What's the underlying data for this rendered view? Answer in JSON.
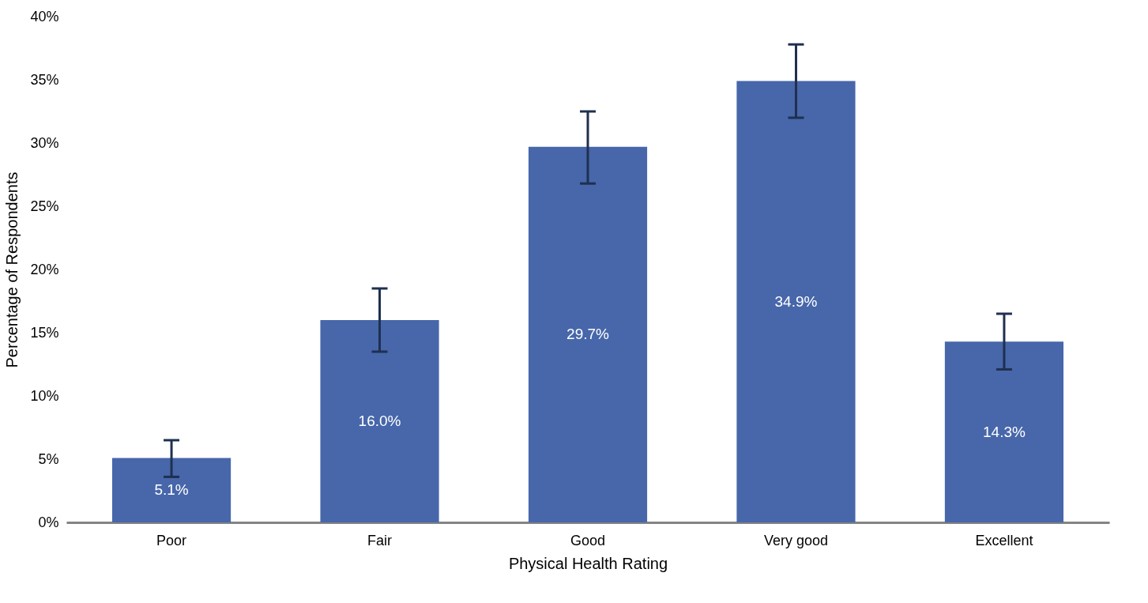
{
  "chart_data": {
    "type": "bar",
    "xlabel": "Physical Health Rating",
    "ylabel": "Percentage of Respondents",
    "categories": [
      "Poor",
      "Fair",
      "Good",
      "Very good",
      "Excellent"
    ],
    "values": [
      5.1,
      16.0,
      29.7,
      34.9,
      14.3
    ],
    "value_labels": [
      "5.1%",
      "16.0%",
      "29.7%",
      "34.9%",
      "14.3%"
    ],
    "errors": [
      [
        3.6,
        6.5
      ],
      [
        13.5,
        18.5
      ],
      [
        26.8,
        32.5
      ],
      [
        32.0,
        37.8
      ],
      [
        12.1,
        16.5
      ]
    ],
    "color": "#4767aa",
    "ylim": [
      0,
      40
    ],
    "yticks": [
      {
        "value": 0,
        "label": "0%"
      },
      {
        "value": 5,
        "label": "5%"
      },
      {
        "value": 10,
        "label": "10%"
      },
      {
        "value": 15,
        "label": "15%"
      },
      {
        "value": 20,
        "label": "20%"
      },
      {
        "value": 25,
        "label": "25%"
      },
      {
        "value": 30,
        "label": "30%"
      },
      {
        "value": 35,
        "label": "35%"
      },
      {
        "value": 40,
        "label": "40%"
      }
    ],
    "grid": false
  }
}
